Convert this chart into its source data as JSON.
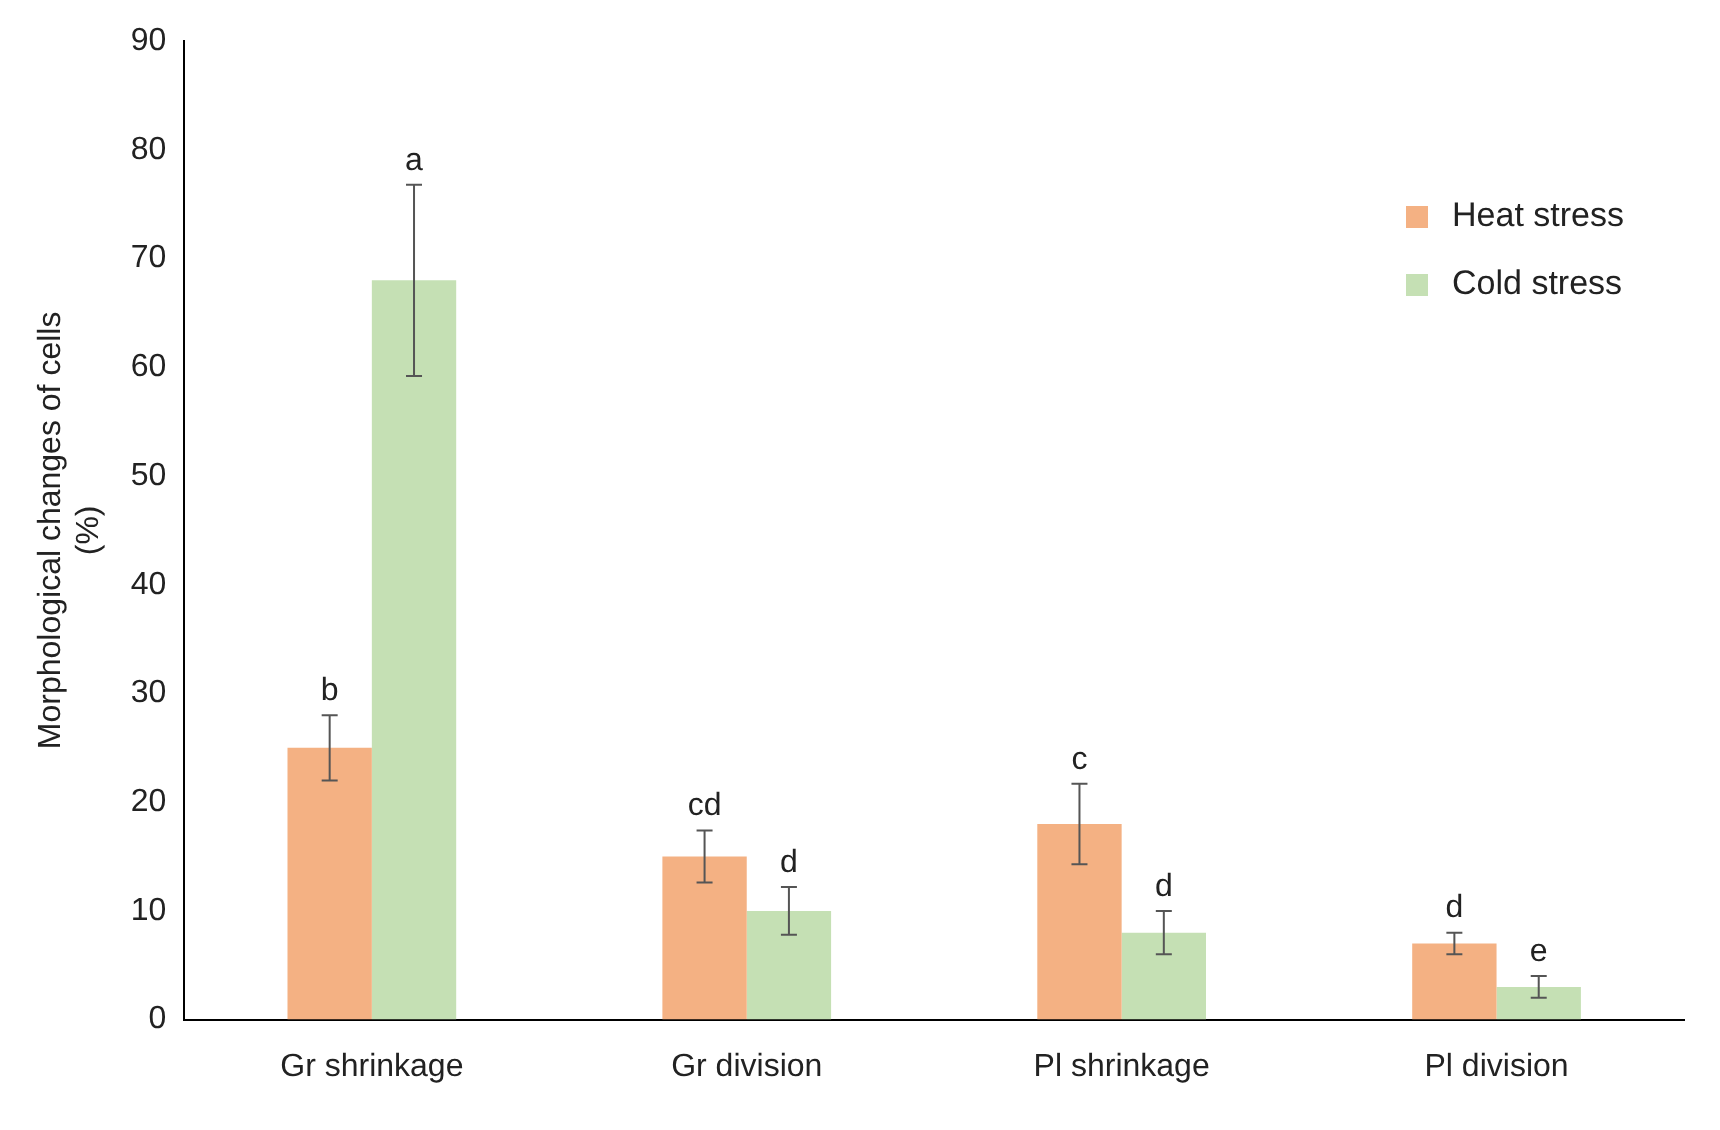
{
  "chart_data": {
    "type": "bar",
    "ylabel": "Morphological changes of cells\n(%)",
    "categories": [
      "Gr shrinkage",
      "Gr division",
      "Pl shrinkage",
      "Pl division"
    ],
    "series": [
      {
        "name": "Heat stress",
        "color": "#f4b183",
        "values": [
          25,
          15,
          18,
          7
        ],
        "errors": [
          3,
          2.4,
          3.7,
          1
        ]
      },
      {
        "name": "Cold stress",
        "color": "#c5e0b4",
        "values": [
          68,
          10,
          8,
          3
        ],
        "errors": [
          8.8,
          2.2,
          2,
          1
        ]
      }
    ],
    "ylim": [
      0,
      90
    ],
    "yticks": [
      0,
      10,
      20,
      30,
      40,
      50,
      60,
      70,
      80,
      90
    ],
    "grid": false,
    "legend": "top right",
    "annotations": [
      "b",
      "a",
      "cd",
      "d",
      "c",
      "d",
      "d",
      "e"
    ]
  }
}
